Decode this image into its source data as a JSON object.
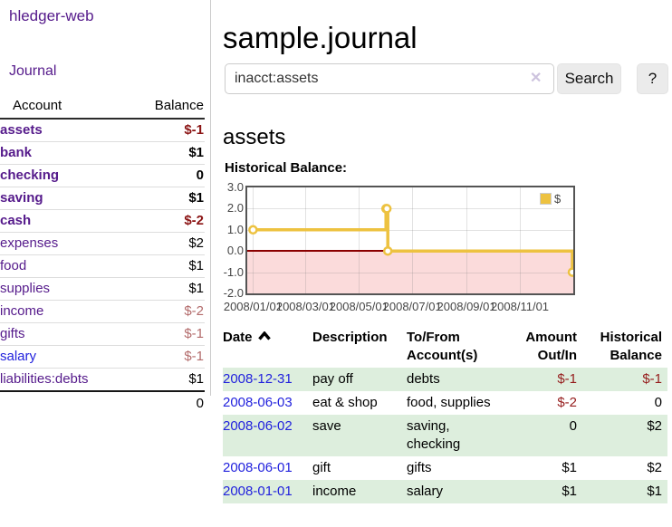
{
  "app": {
    "title": "hledger-web"
  },
  "sidebar": {
    "nav": [
      {
        "label": "Journal"
      }
    ],
    "accounts_table": {
      "headers": {
        "account": "Account",
        "balance": "Balance"
      },
      "rows": [
        {
          "name": "assets",
          "indent": 0,
          "bold": true,
          "balance": "$-1",
          "negative": true,
          "link_style": "visited"
        },
        {
          "name": "bank",
          "indent": 1,
          "bold": true,
          "balance": "$1",
          "negative": false,
          "link_style": "visited"
        },
        {
          "name": "checking",
          "indent": 2,
          "bold": true,
          "balance": "0",
          "negative": false,
          "link_style": "visited"
        },
        {
          "name": "saving",
          "indent": 2,
          "bold": true,
          "balance": "$1",
          "negative": false,
          "link_style": "visited"
        },
        {
          "name": "cash",
          "indent": 1,
          "bold": true,
          "balance": "$-2",
          "negative": true,
          "link_style": "visited"
        },
        {
          "name": "expenses",
          "indent": 0,
          "bold": false,
          "balance": "$2",
          "negative": false,
          "link_style": "visited"
        },
        {
          "name": "food",
          "indent": 1,
          "bold": false,
          "balance": "$1",
          "negative": false,
          "link_style": "visited"
        },
        {
          "name": "supplies",
          "indent": 1,
          "bold": false,
          "balance": "$1",
          "negative": false,
          "link_style": "visited"
        },
        {
          "name": "income",
          "indent": 0,
          "bold": false,
          "balance": "$-2",
          "negative": true,
          "link_style": "visited"
        },
        {
          "name": "gifts",
          "indent": 1,
          "bold": false,
          "balance": "$-1",
          "negative": true,
          "link_style": "visited"
        },
        {
          "name": "salary",
          "indent": 1,
          "bold": false,
          "balance": "$-1",
          "negative": true,
          "link_style": "unvisited"
        },
        {
          "name": "liabilities:debts",
          "indent": 0,
          "bold": false,
          "balance": "$1",
          "negative": false,
          "link_style": "visited"
        }
      ],
      "total": "0"
    }
  },
  "main": {
    "title": "sample.journal",
    "search": {
      "value": "inacct:assets",
      "clear_icon": "✕",
      "button_label": "Search",
      "help_label": "?"
    },
    "account_heading": "assets",
    "chart_label": "Historical Balance:"
  },
  "chart_data": {
    "type": "line",
    "style": "step",
    "title": "Historical Balance",
    "legend": "$",
    "legend_position": "top-right",
    "grid": true,
    "ylim": [
      -2,
      3
    ],
    "y_ticks": [
      "3.0",
      "2.0",
      "1.0",
      "0.0",
      "-1.0",
      "-2.0"
    ],
    "y_tick_values": [
      3,
      2,
      1,
      0,
      -1,
      -2
    ],
    "x_ticks": [
      "2008/01/01",
      "2008/03/01",
      "2008/05/01",
      "2008/07/01",
      "2008/09/01",
      "2008/11/01"
    ],
    "series": [
      {
        "name": "$",
        "color": "#edc240",
        "points": [
          {
            "x": "2008-01-01",
            "y": 1
          },
          {
            "x": "2008-06-01",
            "y": 2
          },
          {
            "x": "2008-06-02",
            "y": 2
          },
          {
            "x": "2008-06-03",
            "y": 0
          },
          {
            "x": "2008-12-31",
            "y": -1
          }
        ]
      }
    ],
    "negative_region_color": "#fbdbdb",
    "zero_line_color": "#8b0000"
  },
  "register_table": {
    "headers": {
      "date": "Date",
      "description": "Description",
      "accounts": "To/From Account(s)",
      "amount": "Amount Out/In",
      "balance": "Historical Balance"
    },
    "sort": {
      "column": "date",
      "direction": "asc"
    },
    "rows": [
      {
        "date": "2008-12-31",
        "description": "pay off",
        "accounts": "debts",
        "amount": "$-1",
        "amount_negative": true,
        "balance": "$-1",
        "balance_negative": true,
        "shaded": true
      },
      {
        "date": "2008-06-03",
        "description": "eat & shop",
        "accounts": "food, supplies",
        "amount": "$-2",
        "amount_negative": true,
        "balance": "0",
        "balance_negative": false,
        "shaded": false
      },
      {
        "date": "2008-06-02",
        "description": "save",
        "accounts": "saving, checking",
        "amount": "0",
        "amount_negative": false,
        "balance": "$2",
        "balance_negative": false,
        "shaded": true
      },
      {
        "date": "2008-06-01",
        "description": "gift",
        "accounts": "gifts",
        "amount": "$1",
        "amount_negative": false,
        "balance": "$2",
        "balance_negative": false,
        "shaded": false
      },
      {
        "date": "2008-01-01",
        "description": "income",
        "accounts": "salary",
        "amount": "$1",
        "amount_negative": false,
        "balance": "$1",
        "balance_negative": false,
        "shaded": true
      }
    ]
  }
}
